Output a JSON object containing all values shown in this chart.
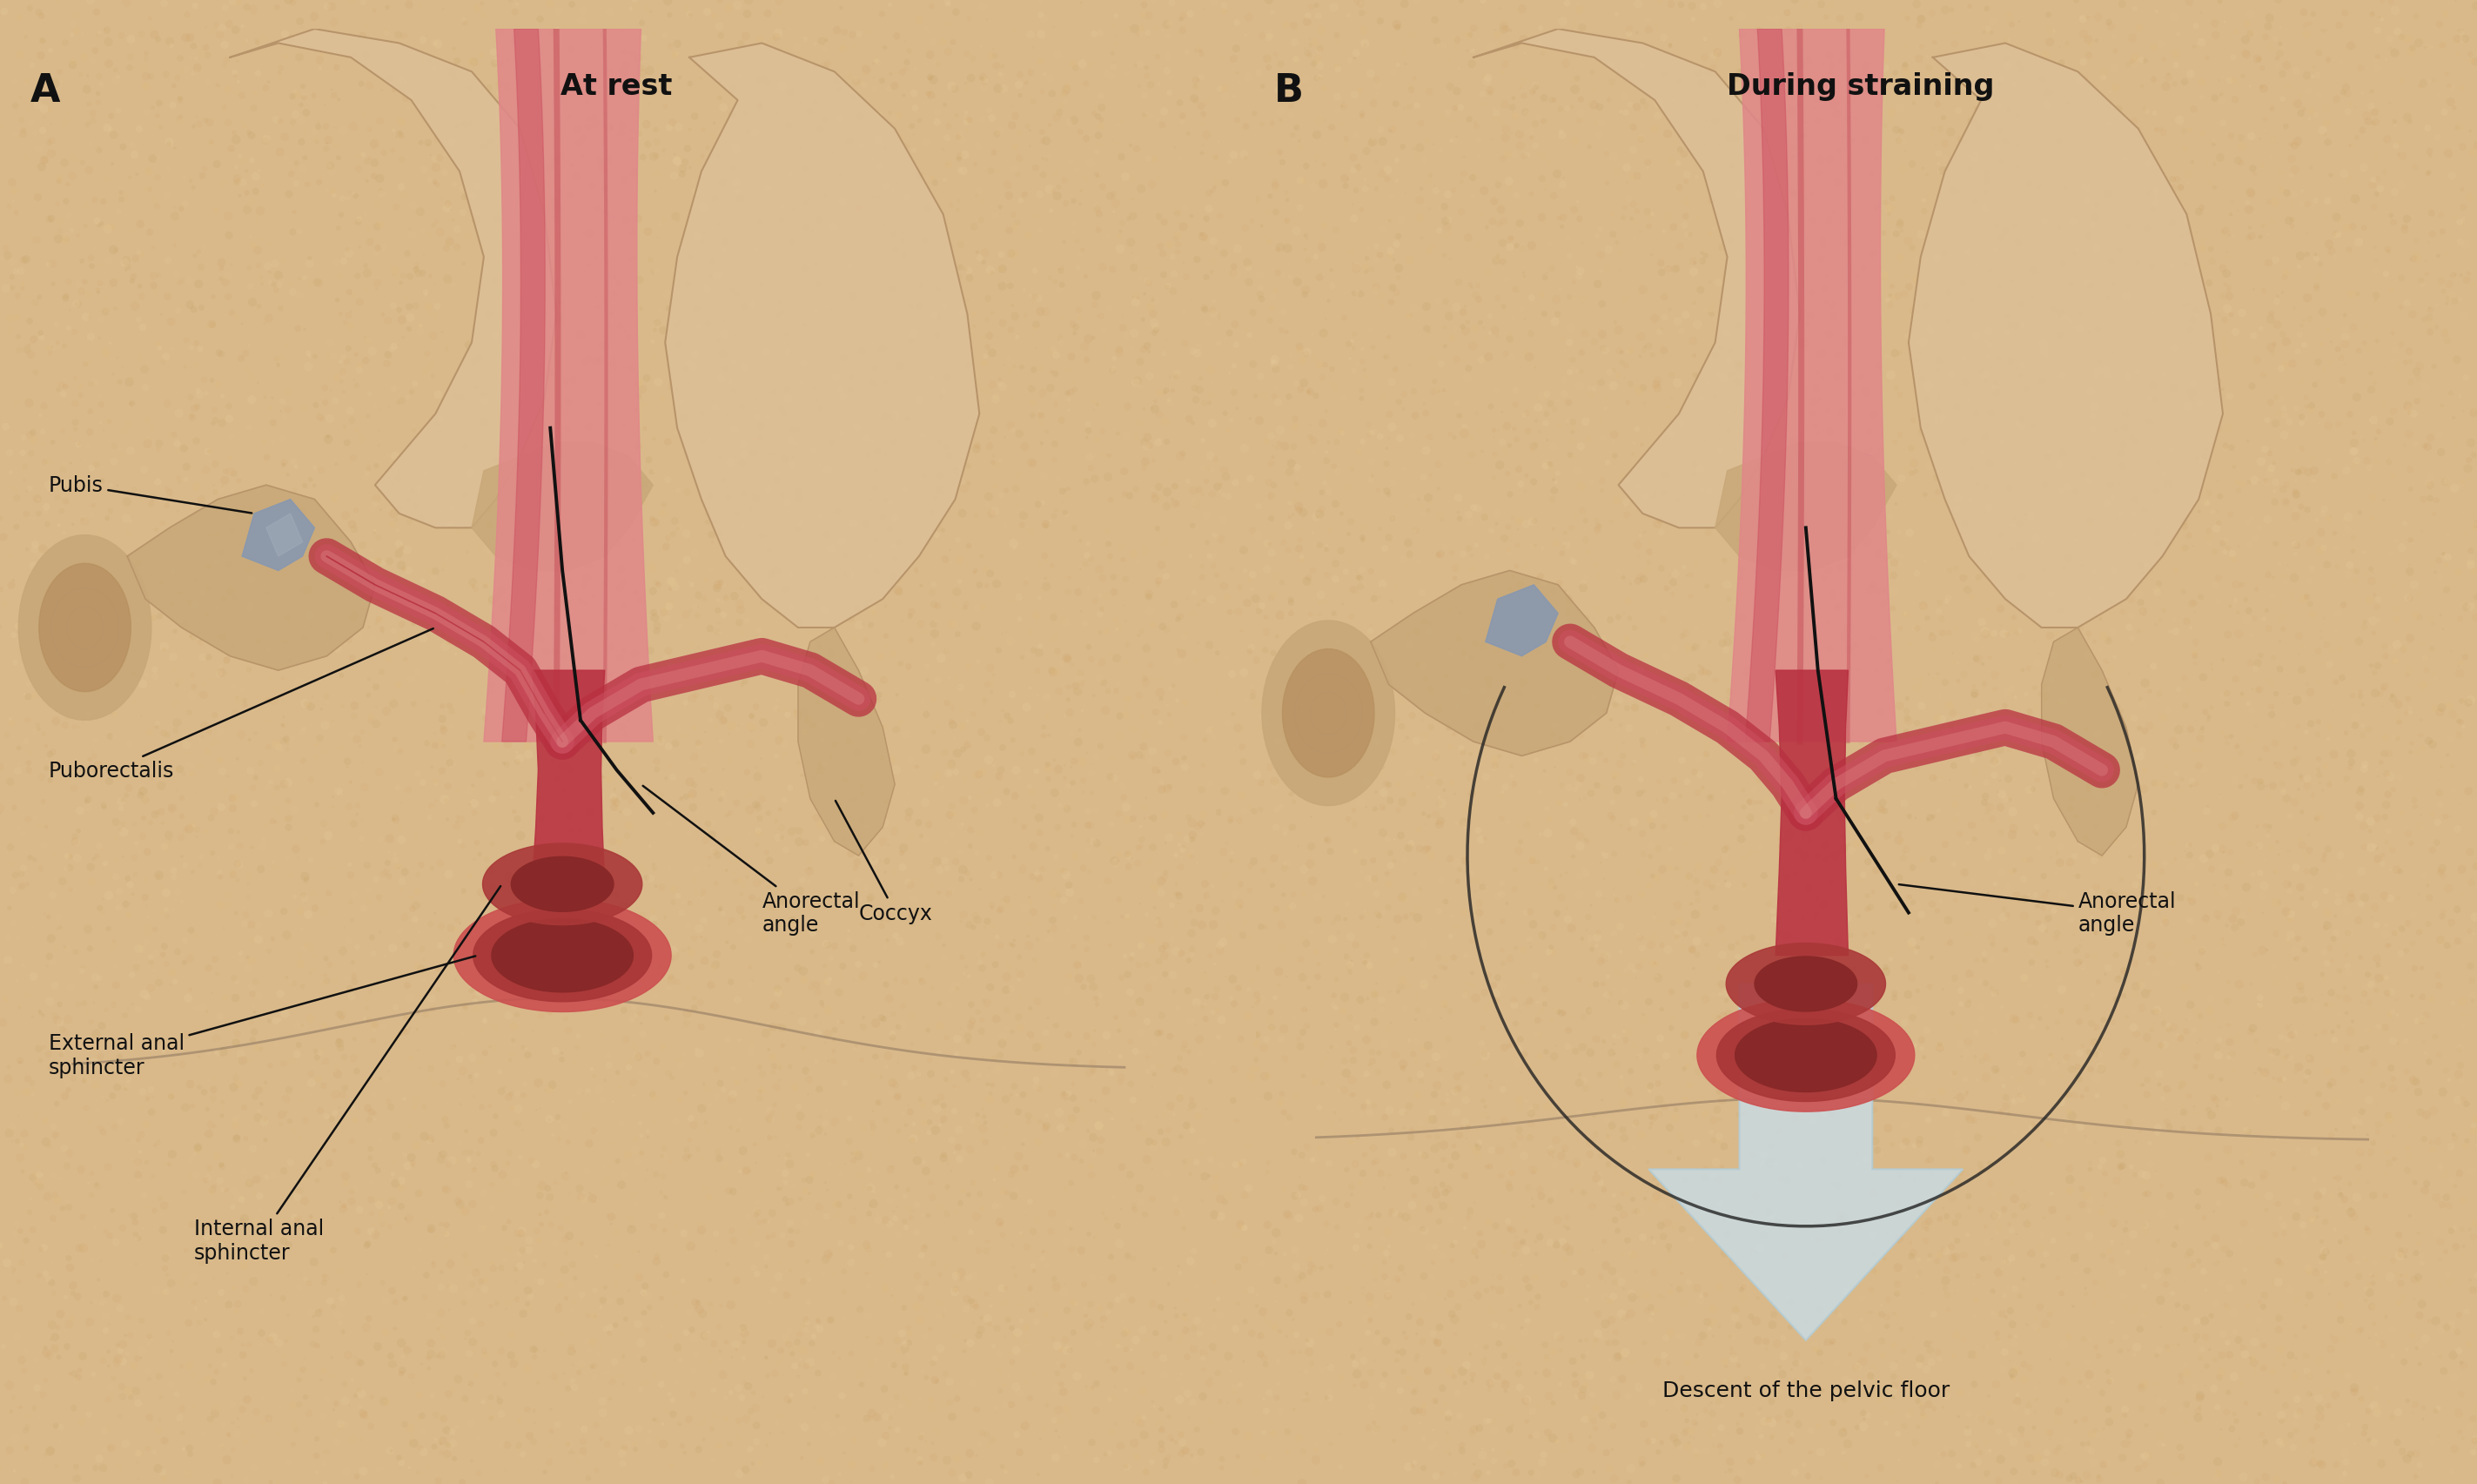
{
  "bg_color": "#d9b98a",
  "title_A": "At rest",
  "title_B": "During straining",
  "label_A": "A",
  "label_B": "B",
  "muscle_red_dark": "#b83040",
  "muscle_red_mid": "#cc5060",
  "muscle_pink": "#e08888",
  "muscle_light": "#eeaaaa",
  "bone_tan": "#c8a878",
  "bone_light": "#ddc098",
  "bone_shadow": "#b8946a",
  "gray_cart": "#8898b0",
  "gray_cart2": "#a0aab8",
  "sphincter_dark": "#882828",
  "sphincter_mid": "#aa3838",
  "sphincter_light": "#cc5050",
  "arrow_blue": "#b0ccd8",
  "arrow_blue2": "#c8dde8",
  "line_black": "#111111",
  "skin_light": "#e8c9a0",
  "skin_mid": "#d4ab80",
  "label_fs": 17,
  "title_fs": 24,
  "panel_fs": 32
}
